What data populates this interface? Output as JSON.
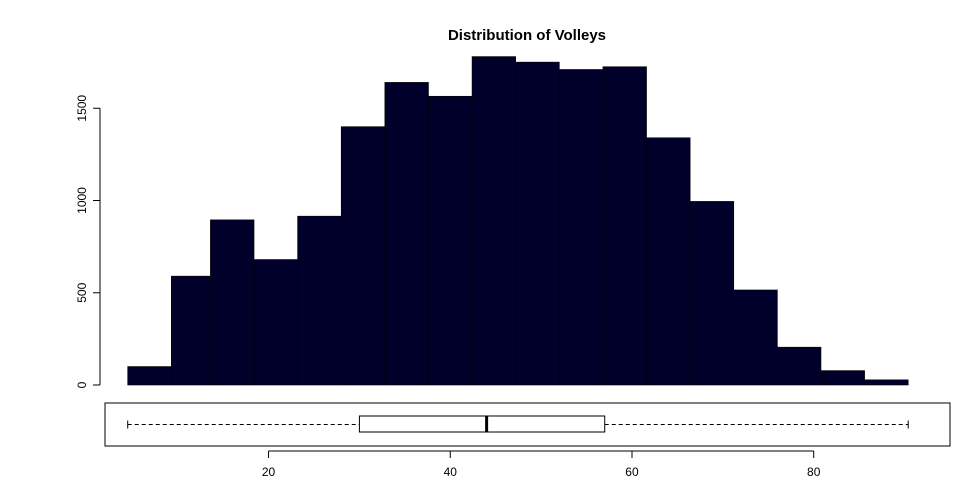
{
  "chart_data": [
    {
      "type": "bar",
      "subtype": "histogram",
      "title": "Distribution of Volleys",
      "xlabel": "",
      "ylabel": "",
      "bins": [
        [
          4.5,
          9.3
        ],
        [
          9.3,
          13.6
        ],
        [
          13.6,
          18.4
        ],
        [
          18.4,
          23.2
        ],
        [
          23.2,
          28.0
        ],
        [
          28.0,
          32.8
        ],
        [
          32.8,
          37.6
        ],
        [
          37.6,
          42.4
        ],
        [
          42.4,
          47.2
        ],
        [
          47.2,
          52.0
        ],
        [
          52.0,
          56.8
        ],
        [
          56.8,
          61.6
        ],
        [
          61.6,
          66.4
        ],
        [
          66.4,
          71.2
        ],
        [
          71.2,
          76.0
        ],
        [
          76.0,
          80.8
        ],
        [
          80.8,
          85.6
        ],
        [
          85.6,
          90.4
        ]
      ],
      "values": [
        100,
        590,
        895,
        680,
        915,
        1400,
        1640,
        1565,
        1780,
        1750,
        1710,
        1725,
        1340,
        995,
        515,
        205,
        78,
        28
      ],
      "ylim": [
        0,
        1800
      ],
      "y_ticks": [
        "0",
        "500",
        "1000",
        "1500"
      ],
      "y_tick_values": [
        0,
        500,
        1000,
        1500
      ],
      "bar_color": "#00002B",
      "grid": false
    },
    {
      "type": "boxplot",
      "orientation": "horizontal",
      "whisker_low": 4.5,
      "q1": 30,
      "median": 44,
      "q3": 57,
      "whisker_high": 90.4,
      "xlim": [
        2,
        95
      ],
      "x_ticks": [
        "20",
        "40",
        "60",
        "80"
      ],
      "x_tick_values": [
        20,
        40,
        60,
        80
      ]
    }
  ]
}
